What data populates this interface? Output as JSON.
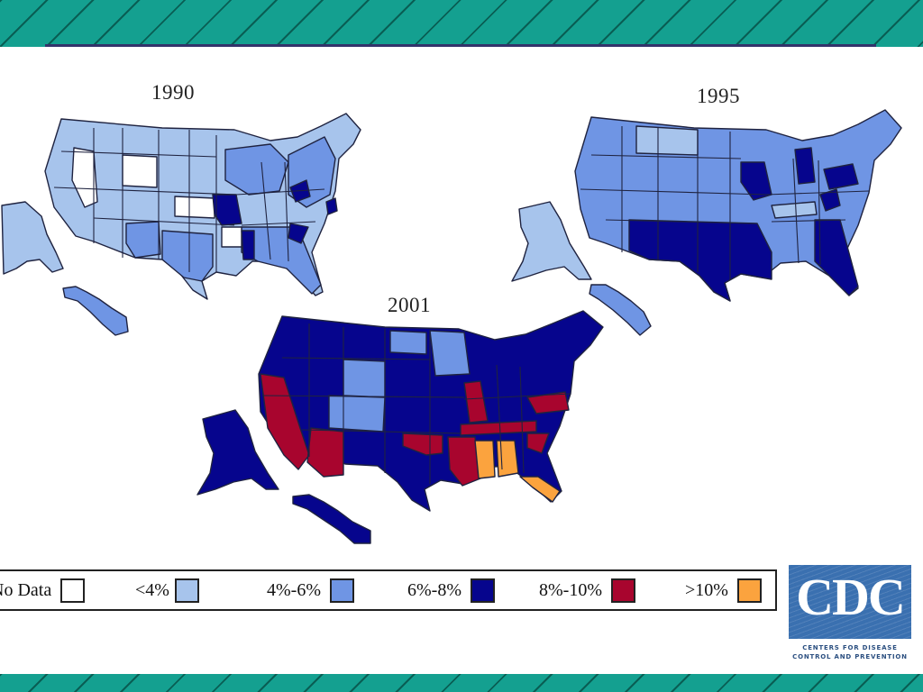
{
  "maps": [
    {
      "year": "1990",
      "fill": "#a7c4ec",
      "accent_fill": "#6f95e4",
      "dark_fill": "#06058d",
      "nodata_fill": "#ffffff"
    },
    {
      "year": "1995",
      "fill": "#6f95e4",
      "accent_fill": "#a7c4ec",
      "dark_fill": "#06058d"
    },
    {
      "year": "2001",
      "fill": "#06058d",
      "accent_fill": "#6f95e4",
      "red_fill": "#a8052e",
      "orange_fill": "#fba33e"
    }
  ],
  "legend": {
    "items": [
      {
        "label": "No Data",
        "color": "#ffffff"
      },
      {
        "label": "<4%",
        "color": "#a7c4ec"
      },
      {
        "label": "4%-6%",
        "color": "#6f95e4"
      },
      {
        "label": "6%-8%",
        "color": "#06058d"
      },
      {
        "label": "8%-10%",
        "color": "#a8052e"
      },
      {
        "label": ">10%",
        "color": "#fba33e"
      }
    ]
  },
  "logo": {
    "letters": "CDC",
    "line1": "CENTERS FOR DISEASE",
    "line2": "CONTROL AND PREVENTION"
  }
}
